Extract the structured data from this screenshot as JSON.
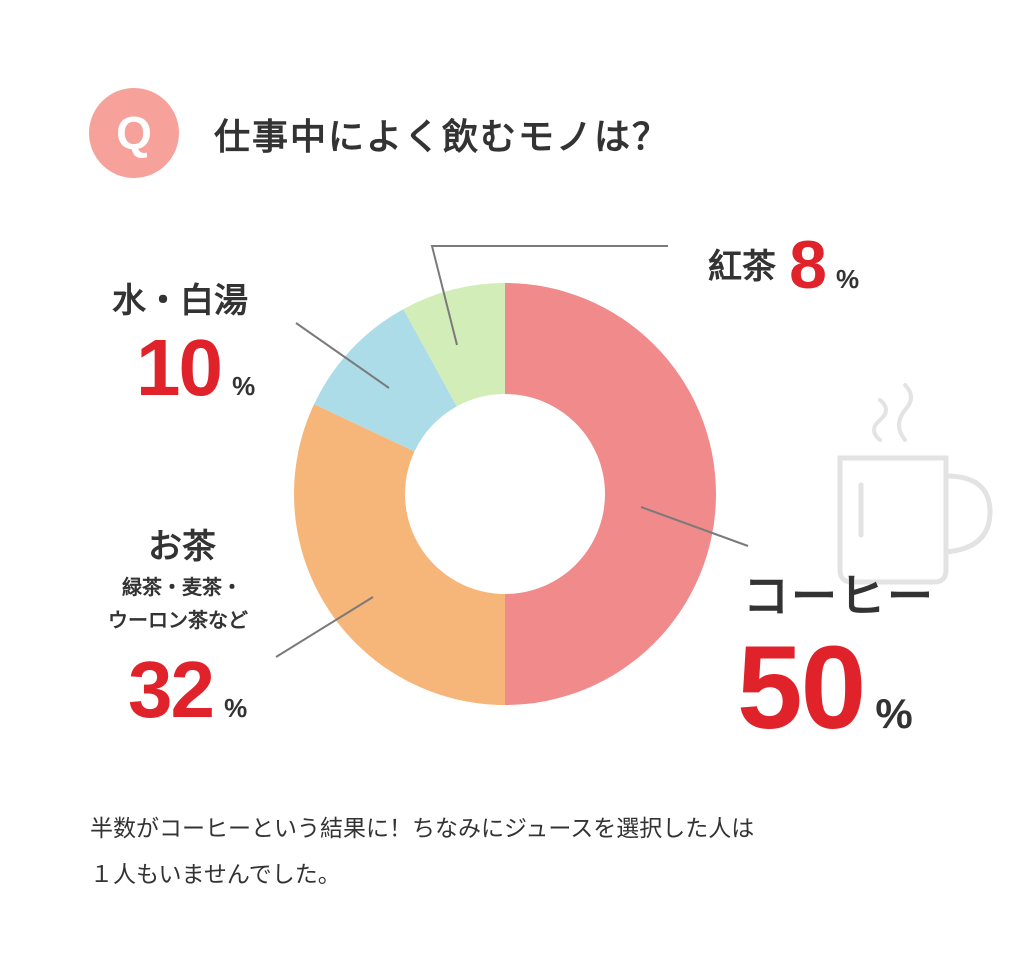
{
  "badge": "Q",
  "question": "仕事中によく飲むモノは？",
  "labels": {
    "tea": {
      "name": "紅茶",
      "value": "8",
      "unit": "%"
    },
    "water": {
      "name": "水・白湯",
      "value": "10",
      "unit": "%"
    },
    "ocha": {
      "name": "お茶",
      "sub1": "緑茶・麦茶・",
      "sub2": "ウーロン茶など",
      "value": "32",
      "unit": "%"
    },
    "coffee": {
      "name": "コーヒー",
      "value": "50",
      "unit": "%"
    }
  },
  "chart_data": {
    "type": "pie",
    "variant": "donut",
    "categories": [
      "コーヒー",
      "お茶",
      "水・白湯",
      "紅茶"
    ],
    "values": [
      50,
      32,
      10,
      8
    ],
    "unit": "%",
    "colors": [
      "#f08a8b",
      "#f7b679",
      "#acdce7",
      "#d3edb9"
    ]
  },
  "caption": {
    "line1": "半数がコーヒーという結果に！ちなみにジュースを選択した人は",
    "line2": "１人もいませんでした。"
  },
  "icon": "coffee-mug-icon",
  "colors": {
    "accent": "#e0232b",
    "badge": "#f7a19b",
    "text": "#333333",
    "leader": "#7a7a7a",
    "mug": "#e3e3e3"
  }
}
